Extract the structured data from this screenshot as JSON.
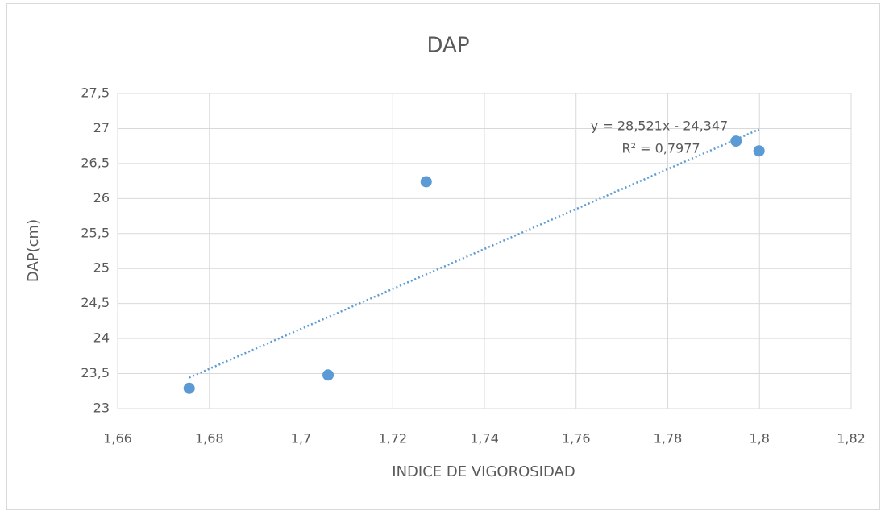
{
  "chart_data": {
    "type": "scatter",
    "title": "DAP",
    "x_label": "INDICE DE VIGOROSIDAD",
    "y_label": "DAP(cm)",
    "series": [
      {
        "name": "DAP",
        "color": "#5b9bd5",
        "x": [
          1.6756,
          1.7059,
          1.7273,
          1.7949,
          1.7999
        ],
        "values": [
          23.29,
          23.48,
          26.24,
          26.82,
          26.68
        ]
      }
    ],
    "trendline": {
      "slope": 28.521,
      "intercept": -24.347,
      "color": "#5b9bd5",
      "equation": "y = 28,521x - 24,347",
      "r_squared": "R² = 0,7977"
    },
    "xlim": [
      1.66,
      1.82
    ],
    "xticks": [
      {
        "value": 1.66,
        "label": "1,66"
      },
      {
        "value": 1.68,
        "label": "1,68"
      },
      {
        "value": 1.7,
        "label": "1,7"
      },
      {
        "value": 1.72,
        "label": "1,72"
      },
      {
        "value": 1.74,
        "label": "1,74"
      },
      {
        "value": 1.76,
        "label": "1,76"
      },
      {
        "value": 1.78,
        "label": "1,78"
      },
      {
        "value": 1.8,
        "label": "1,8"
      },
      {
        "value": 1.82,
        "label": "1,82"
      }
    ],
    "ylim": [
      23,
      27.5
    ],
    "yticks": [
      23,
      {
        "value": 23.5,
        "label": "23,5"
      },
      24,
      {
        "value": 24.5,
        "label": "24,5"
      },
      25,
      {
        "value": 25.5,
        "label": "25,5"
      },
      26,
      {
        "value": 26.5,
        "label": "26,5"
      },
      27,
      {
        "value": 27.5,
        "label": "27,5"
      }
    ],
    "grid": true
  }
}
